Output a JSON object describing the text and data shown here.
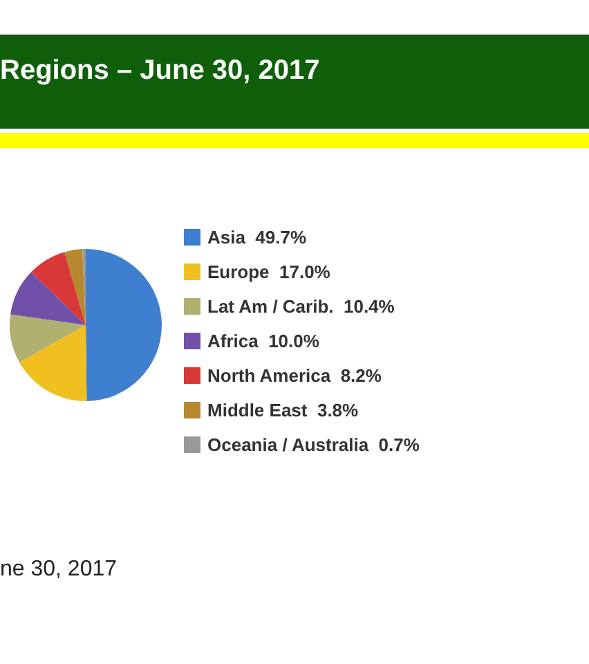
{
  "chart_data": {
    "type": "pie",
    "title": "Regions – June 30, 2017",
    "categories": [
      "Asia",
      "Europe",
      "Lat Am / Carib.",
      "Africa",
      "North America",
      "Middle East",
      "Oceania / Australia"
    ],
    "values": [
      49.7,
      17.0,
      10.4,
      10.0,
      8.2,
      3.8,
      0.7
    ],
    "value_labels": [
      "49.7%",
      "17.0%",
      "10.4%",
      "10.0%",
      "8.2%",
      "3.8%",
      "0.7%"
    ],
    "colors": [
      "#3f7fd0",
      "#f0c020",
      "#b0b070",
      "#7050a8",
      "#d83838",
      "#b88830",
      "#999999"
    ],
    "legend": "right",
    "annotations": [
      "ne 30, 2017"
    ]
  }
}
